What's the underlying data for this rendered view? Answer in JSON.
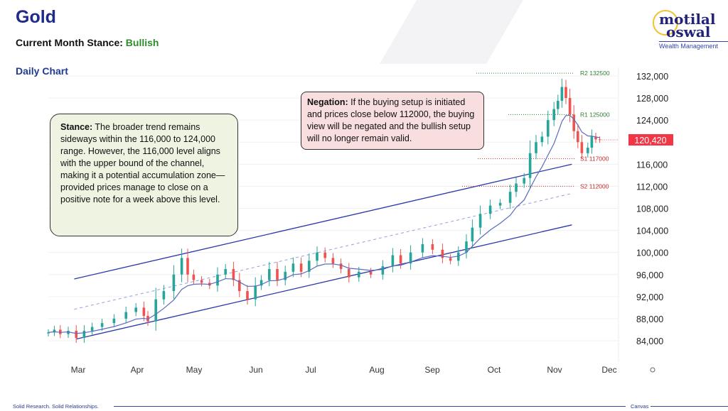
{
  "header": {
    "title": "Gold",
    "stance_label": "Current Month Stance:",
    "stance_value": "Bullish",
    "chart_label": "Daily Chart"
  },
  "logo": {
    "line1": "motilal",
    "line2": "oswal",
    "tagline": "Wealth Management"
  },
  "stance_box": {
    "bold": "Stance:",
    "text": " The broader trend remains sideways within the 116,000 to 124,000 range. However, the 116,000 level aligns with the upper bound of the channel, making it a potential accumulation zone—provided prices manage to close on a positive note for a week above this level."
  },
  "negation_box": {
    "bold": "Negation:",
    "text": " If the buying setup is initiated and prices close below 112000, the buying view will be negated and the bullish setup will no longer remain valid."
  },
  "footer": {
    "left": "Solid Research. Solid Relationships.",
    "right": "Canvas"
  },
  "colors": {
    "up": "#26a69a",
    "down": "#ef5350",
    "ma": "#5b6bc0",
    "channel": "#2838a8",
    "resistance": "#2e7d32",
    "support": "#c62828"
  },
  "chart_data": {
    "type": "candlestick",
    "title": "Gold Daily Chart",
    "ylim": [
      82000,
      134000
    ],
    "yticks": [
      84000,
      88000,
      92000,
      96000,
      100000,
      104000,
      108000,
      112000,
      116000,
      120000,
      124000,
      128000,
      132000
    ],
    "ytick_labels": [
      "84,000",
      "88,000",
      "92,000",
      "96,000",
      "100,000",
      "104,000",
      "108,000",
      "112,000",
      "116,000",
      "120,000",
      "124,000",
      "128,000",
      "132,000"
    ],
    "xtick_labels": [
      "Mar",
      "Apr",
      "May",
      "Jun",
      "Jul",
      "Aug",
      "Sep",
      "Oct",
      "Nov",
      "Dec"
    ],
    "last_price": "120,420",
    "levels": [
      {
        "label": "R2 132500",
        "value": 132500,
        "kind": "resistance"
      },
      {
        "label": "R1 125000",
        "value": 125000,
        "kind": "resistance"
      },
      {
        "label": "S1 117000",
        "value": 117000,
        "kind": "support"
      },
      {
        "label": "S2 112000",
        "value": 112000,
        "kind": "support"
      }
    ],
    "channel": {
      "upper": [
        [
          -2,
          95200
        ],
        [
          248,
          116000
        ]
      ],
      "middle": [
        [
          -2,
          89700
        ],
        [
          248,
          110700
        ]
      ],
      "lower": [
        [
          -1,
          84300
        ],
        [
          248,
          105000
        ]
      ]
    },
    "closes_by_day_from_mar1": [
      [
        -15,
        85500
      ],
      [
        -12,
        86000
      ],
      [
        -9,
        85200
      ],
      [
        -5,
        85800
      ],
      [
        -1,
        84500
      ],
      [
        3,
        85800
      ],
      [
        7,
        86500
      ],
      [
        12,
        87200
      ],
      [
        18,
        88000
      ],
      [
        24,
        89200
      ],
      [
        29,
        90000
      ],
      [
        33,
        88500
      ],
      [
        35,
        87500
      ],
      [
        39,
        91500
      ],
      [
        43,
        93000
      ],
      [
        48,
        96000
      ],
      [
        52,
        99000
      ],
      [
        55,
        96000
      ],
      [
        58,
        95000
      ],
      [
        62,
        94500
      ],
      [
        66,
        94000
      ],
      [
        70,
        96000
      ],
      [
        74,
        97000
      ],
      [
        78,
        95000
      ],
      [
        81,
        93000
      ],
      [
        85,
        91500
      ],
      [
        89,
        94000
      ],
      [
        92,
        95000
      ],
      [
        96,
        97000
      ],
      [
        100,
        95000
      ],
      [
        104,
        96500
      ],
      [
        108,
        98000
      ],
      [
        112,
        96500
      ],
      [
        116,
        98500
      ],
      [
        120,
        100000
      ],
      [
        124,
        99000
      ],
      [
        128,
        98000
      ],
      [
        132,
        97000
      ],
      [
        136,
        95500
      ],
      [
        141,
        96500
      ],
      [
        147,
        96000
      ],
      [
        153,
        97500
      ],
      [
        158,
        99500
      ],
      [
        162,
        98000
      ],
      [
        167,
        100000
      ],
      [
        173,
        101500
      ],
      [
        178,
        100500
      ],
      [
        183,
        99000
      ],
      [
        187,
        98500
      ],
      [
        191,
        100000
      ],
      [
        195,
        102000
      ],
      [
        198,
        104500
      ],
      [
        202,
        107000
      ],
      [
        207,
        108500
      ],
      [
        212,
        109000
      ],
      [
        217,
        111000
      ],
      [
        220,
        112500
      ],
      [
        224,
        113500
      ],
      [
        227,
        118000
      ],
      [
        230,
        120000
      ],
      [
        233,
        121000
      ],
      [
        236,
        124000
      ],
      [
        239,
        126000
      ],
      [
        241,
        127500
      ],
      [
        243,
        130000
      ],
      [
        245,
        128000
      ],
      [
        247,
        125000
      ],
      [
        249,
        122000
      ],
      [
        251,
        120000
      ],
      [
        253,
        118000
      ],
      [
        256,
        119000
      ],
      [
        258,
        121000
      ],
      [
        260,
        120500
      ],
      [
        262,
        120420
      ]
    ]
  }
}
